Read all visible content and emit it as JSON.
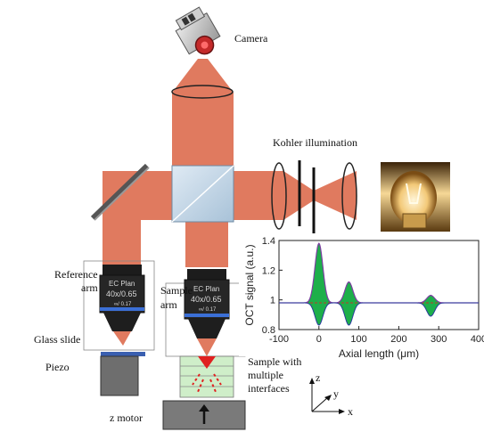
{
  "labels": {
    "camera": "Camera",
    "kohler": "Kohler illumination",
    "reference_arm_line1": "Reference",
    "reference_arm_line2": "arm",
    "sample_arm_line1": "Sample",
    "sample_arm_line2": "arm",
    "glass_slide": "Glass slide",
    "piezo": "Piezo",
    "sample_with_line1": "Sample with",
    "sample_with_line2": "multiple",
    "sample_with_line3": "interfaces",
    "z_motor": "z motor",
    "axis_z": "z",
    "axis_y": "y",
    "axis_x": "x"
  },
  "objective": {
    "line1": "EC Plan",
    "line2": "40x/0.65",
    "line3": "∞/ 0.17"
  },
  "colors": {
    "beam": "#e07a5f",
    "beam_edge": "#c96448",
    "cube": "#c9dcea",
    "piezo": "#6e6e6e",
    "stage": "#7a7a7a",
    "slide": "#3a5fb0",
    "sample_green": "#cfeec9",
    "oct_fill": "#1daf4a",
    "oct_line_purple": "#7b3fa0",
    "oct_line_blue": "#2b3a9e",
    "oct_dash": "#c0392b"
  },
  "icons": {
    "camera": "camera-icon",
    "lamp": "halogen-lamp-icon",
    "mirror": "mirror-icon",
    "beam_splitter": "beam-splitter-icon",
    "objective": "microscope-objective-icon",
    "arrow": "up-arrow-icon"
  },
  "chart_data": {
    "type": "line",
    "xlabel": "Axial length (μm)",
    "ylabel": "OCT signal (a.u.)",
    "xlim": [
      -100,
      400
    ],
    "ylim": [
      0.8,
      1.4
    ],
    "xticks": [
      -100,
      0,
      100,
      200,
      300,
      400
    ],
    "yticks": [
      0.8,
      1.0,
      1.2,
      1.4
    ],
    "ytick_labels": [
      "0.8",
      "1",
      "1.2",
      "1.4"
    ],
    "baseline": 0.98,
    "peaks": [
      {
        "x": 0,
        "upper": 1.38,
        "lower": 0.83
      },
      {
        "x": 75,
        "upper": 1.12,
        "lower": 0.83
      },
      {
        "x": 280,
        "upper": 1.03,
        "lower": 0.89
      }
    ],
    "grid": false
  }
}
